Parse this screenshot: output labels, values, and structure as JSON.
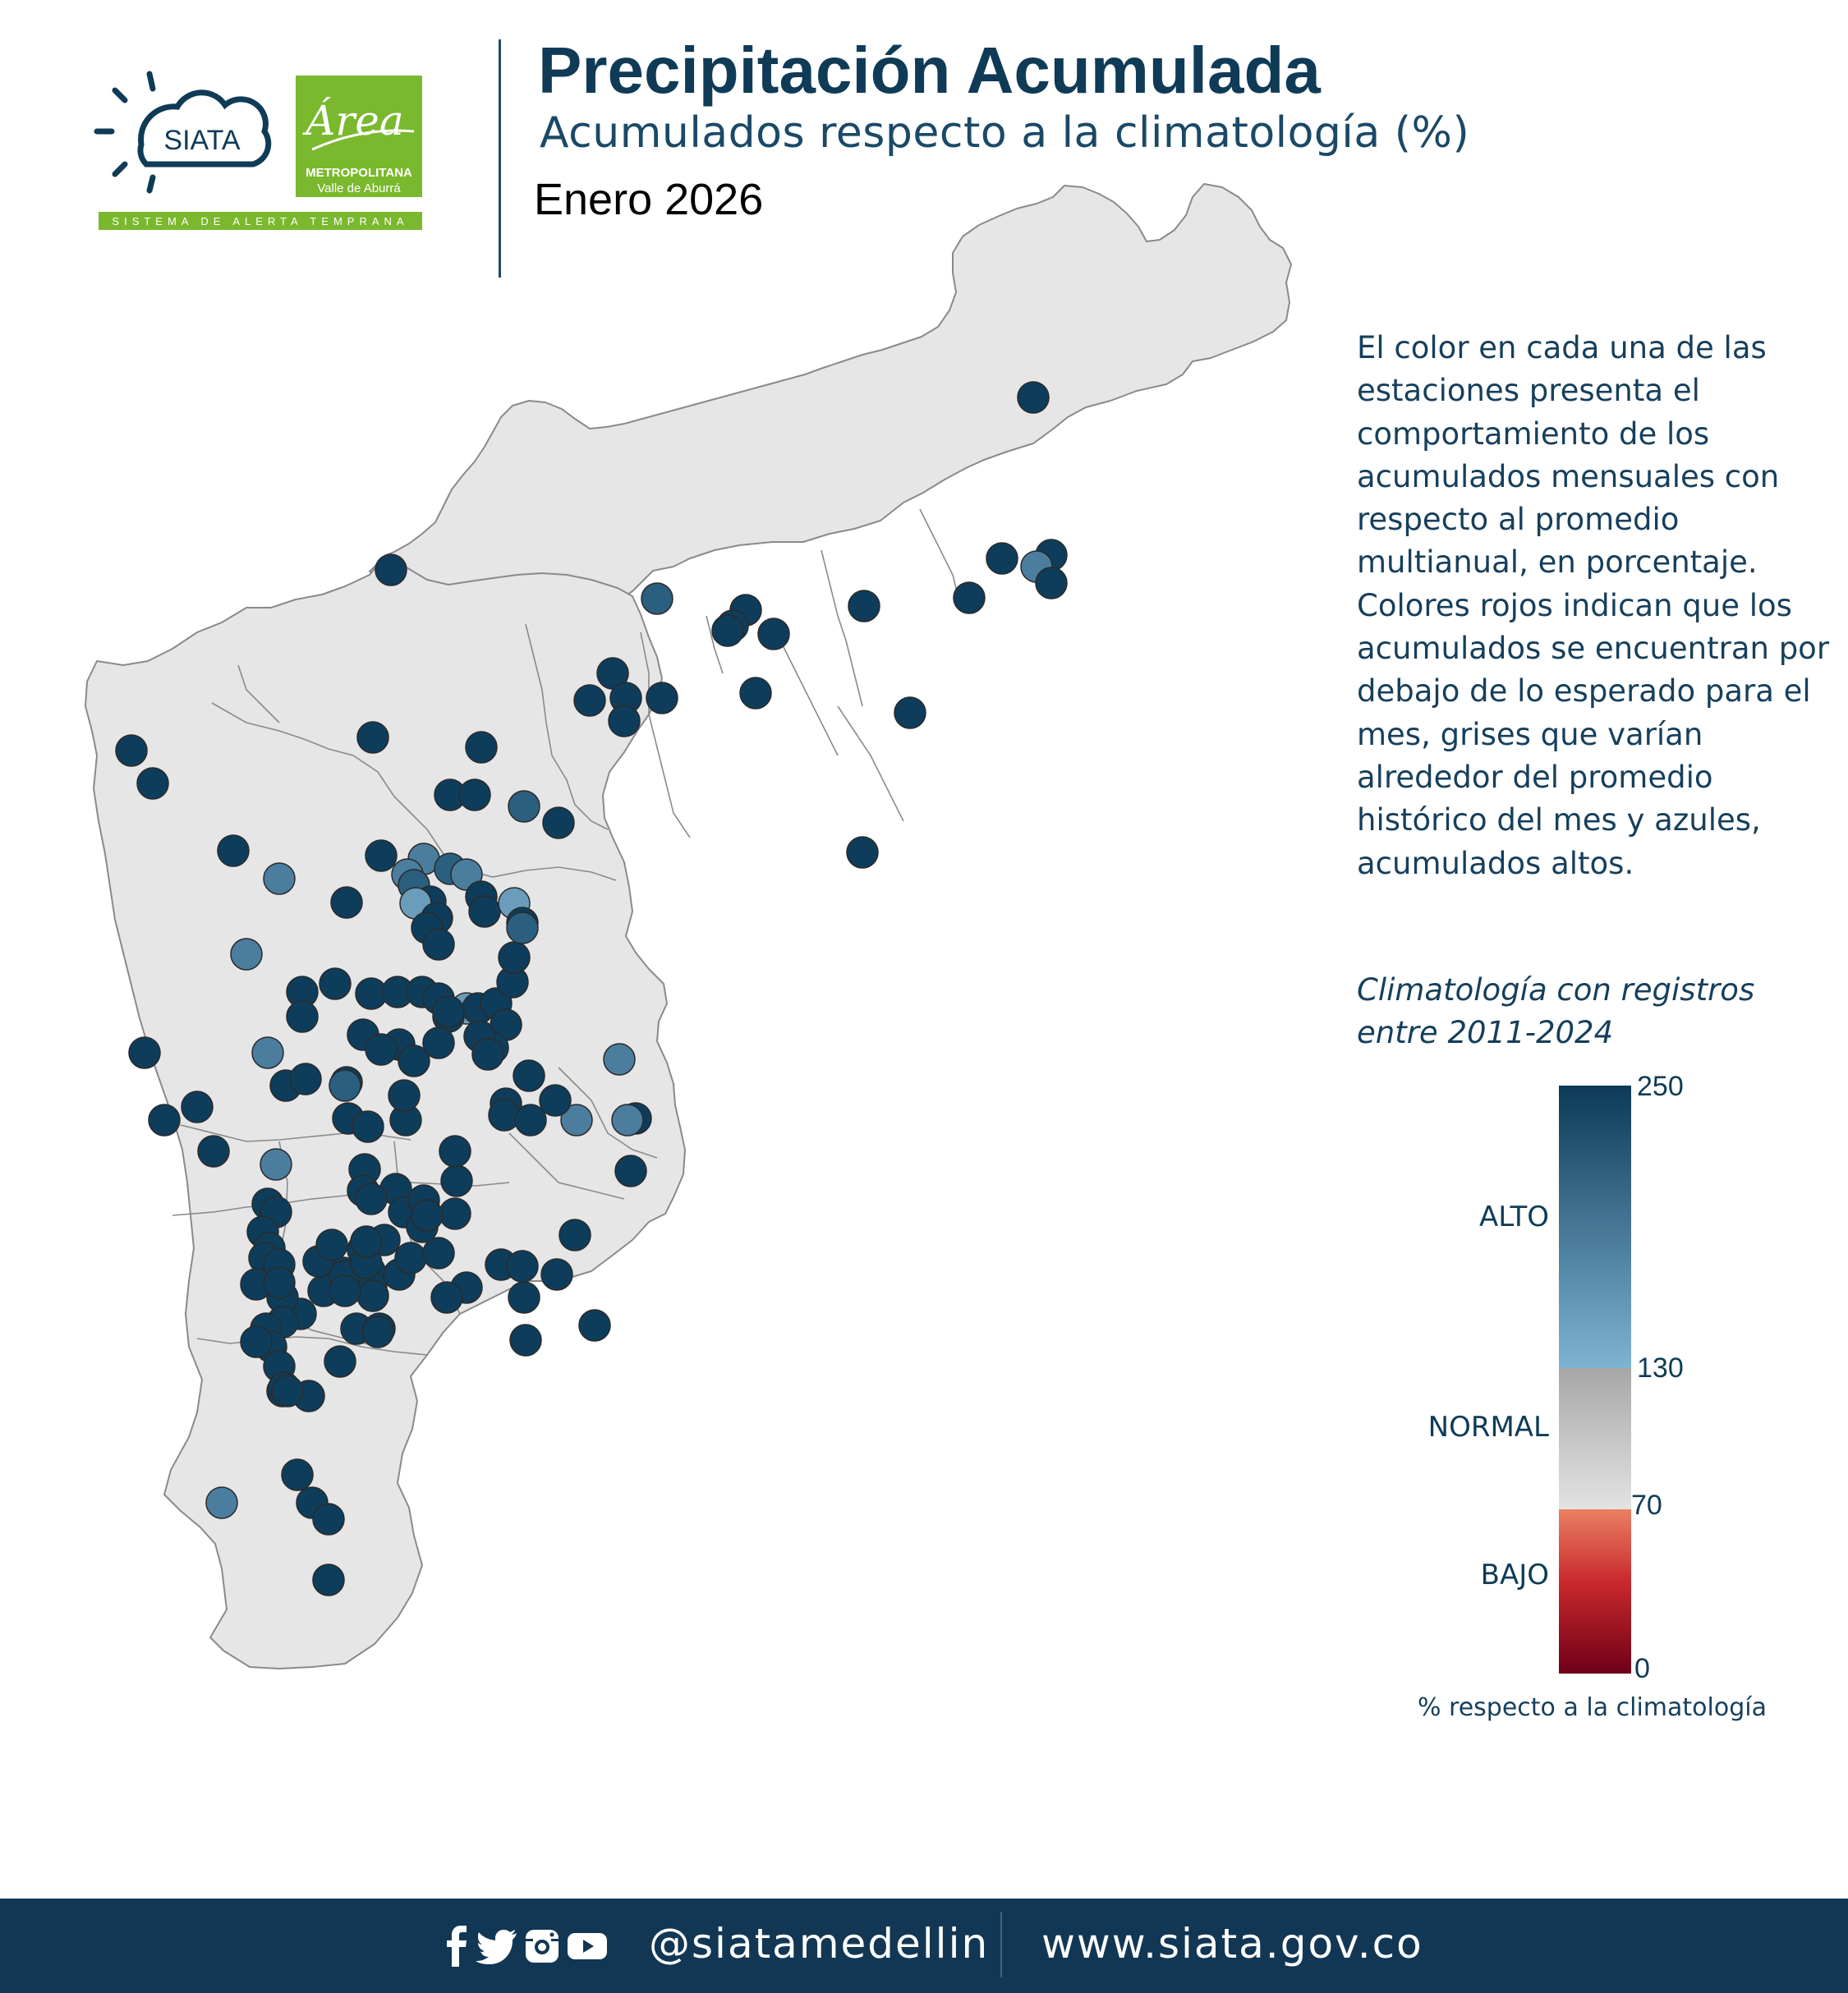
{
  "header": {
    "title": "Precipitación Acumulada",
    "subtitle": "Acumulados respecto a la climatología (%)",
    "period": "Enero 2026"
  },
  "logos": {
    "siata_text": "SIATA",
    "siata_tagline": "SISTEMA DE ALERTA TEMPRANA",
    "area_script": "Área",
    "area_line1": "METROPOLITANA",
    "area_line2": "Valle de Aburrá"
  },
  "description": "El color en cada una de las estaciones presenta el comportamiento de los acumulados mensuales con respecto al promedio multianual, en porcentaje. Colores rojos indican que los acumulados se encuentran por debajo de lo esperado para el mes, grises que varían alrededor del promedio histórico del mes y azules, acumulados altos.",
  "climatology_note": "Climatología con registros entre 2011-2024",
  "legend": {
    "ticks": [
      "250",
      "130",
      "70",
      "0"
    ],
    "categories": [
      "ALTO",
      "NORMAL",
      "BAJO"
    ],
    "caption": "% respecto a la climatología",
    "colors": {
      "alto_top": "#0c3a57",
      "alto_bottom": "#7fb3d3",
      "normal_top": "#a7a7a7",
      "normal_bottom": "#e3e3e3",
      "bajo_top": "#ea8064",
      "bajo_bottom": "#6f0018"
    }
  },
  "map": {
    "region_fill": "#e6e6e6",
    "border_color": "#8a8a8a",
    "station_colors": [
      "#0e3d5b",
      "#2b5f80",
      "#4a7d9e",
      "#6a9cbc"
    ]
  },
  "footer": {
    "icons": [
      "facebook-icon",
      "twitter-icon",
      "instagram-icon",
      "youtube-icon"
    ],
    "handle": "@siatamedellin",
    "website": "www.siata.gov.co"
  }
}
